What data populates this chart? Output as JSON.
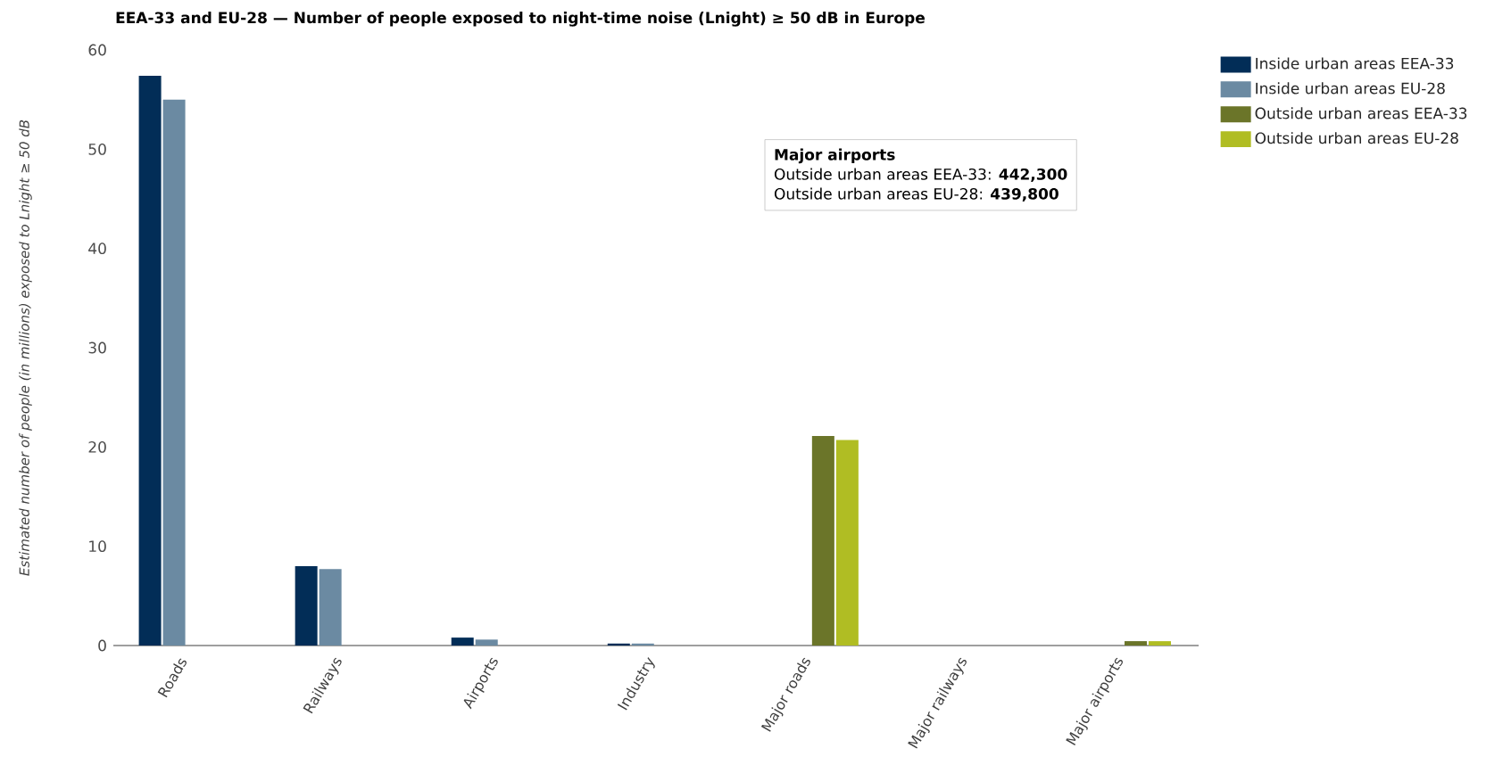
{
  "chart_data": {
    "type": "bar",
    "title": "EEA-33 and EU-28 — Number of people exposed to night-time noise (Lnight) ≥ 50 dB in Europe",
    "ylabel": "Estimated number of people (in millions) exposed to Lnight ≥ 50 dB",
    "categories": [
      "Roads",
      "Railways",
      "Airports",
      "Industry",
      "Major roads",
      "Major railways",
      "Major airports"
    ],
    "series": [
      {
        "name": "Inside urban areas EEA-33",
        "color": "#022d57",
        "values": [
          57.4,
          8.0,
          0.8,
          0.2,
          null,
          null,
          null
        ]
      },
      {
        "name": "Inside urban areas EU-28",
        "color": "#6b8aa2",
        "values": [
          55.0,
          7.7,
          0.6,
          0.2,
          null,
          null,
          null
        ]
      },
      {
        "name": "Outside urban areas EEA-33",
        "color": "#6b7529",
        "values": [
          null,
          null,
          null,
          null,
          21.1,
          null,
          0.4423
        ]
      },
      {
        "name": "Outside urban areas EU-28",
        "color": "#b0bd23",
        "values": [
          null,
          null,
          null,
          null,
          20.7,
          null,
          0.4398
        ]
      }
    ],
    "ylim": [
      0,
      60
    ],
    "yticks": [
      0,
      10,
      20,
      30,
      40,
      50,
      60
    ],
    "legend": "top right",
    "annotations": [
      "Major airports",
      "Outside urban areas EEA-33: **442,300**",
      "Outside urban areas EU-28: **439,800**"
    ]
  }
}
